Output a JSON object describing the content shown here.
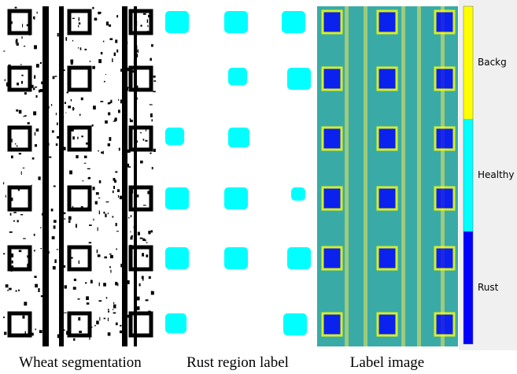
{
  "panels": [
    {
      "caption": "Wheat segmentation"
    },
    {
      "caption": "Rust region label"
    },
    {
      "caption": "Label image"
    }
  ],
  "colorbar": {
    "classes": [
      {
        "label": "Backg",
        "color": "#ffff00"
      },
      {
        "label": "Healthy",
        "color": "#00ffff"
      },
      {
        "label": "Rust",
        "color": "#0000ff"
      }
    ]
  }
}
